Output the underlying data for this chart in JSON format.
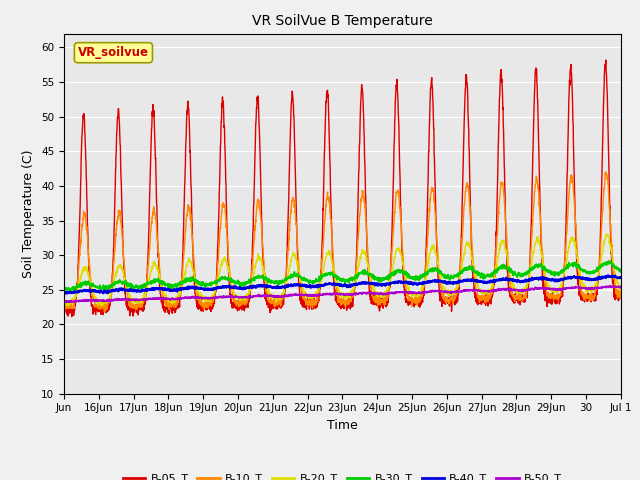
{
  "title": "VR SoilVue B Temperature",
  "xlabel": "Time",
  "ylabel": "Soil Temperature (C)",
  "ylim": [
    10,
    62
  ],
  "yticks": [
    10,
    15,
    20,
    25,
    30,
    35,
    40,
    45,
    50,
    55,
    60
  ],
  "legend_label": "VR_soilvue",
  "legend_label_color": "#cc0000",
  "legend_box_color": "#ffff99",
  "legend_box_edge": "#999900",
  "fig_facecolor": "#f0f0f0",
  "axes_facecolor": "#e8e8e8",
  "grid_color": "#ffffff",
  "series_order": [
    "B-05_T",
    "B-10_T",
    "B-20_T",
    "B-30_T",
    "B-40_T",
    "B-50_T"
  ],
  "series": {
    "B-05_T": {
      "color": "#dd0000",
      "linewidth": 1.0
    },
    "B-10_T": {
      "color": "#ff8800",
      "linewidth": 1.0
    },
    "B-20_T": {
      "color": "#dddd00",
      "linewidth": 1.0
    },
    "B-30_T": {
      "color": "#00cc00",
      "linewidth": 1.2
    },
    "B-40_T": {
      "color": "#0000dd",
      "linewidth": 1.5
    },
    "B-50_T": {
      "color": "#aa00cc",
      "linewidth": 1.2
    }
  },
  "tick_positions": [
    0,
    1,
    2,
    3,
    4,
    5,
    6,
    7,
    8,
    9,
    10,
    11,
    12,
    13,
    14,
    15,
    16
  ],
  "tick_labels": [
    "Jun",
    "16Jun",
    "17Jun",
    "18Jun",
    "19Jun",
    "20Jun",
    "21Jun",
    "22Jun",
    "23Jun",
    "24Jun",
    "25Jun",
    "26Jun",
    "27Jun",
    "28Jun",
    "29Jun",
    "30",
    "Jul 1"
  ]
}
